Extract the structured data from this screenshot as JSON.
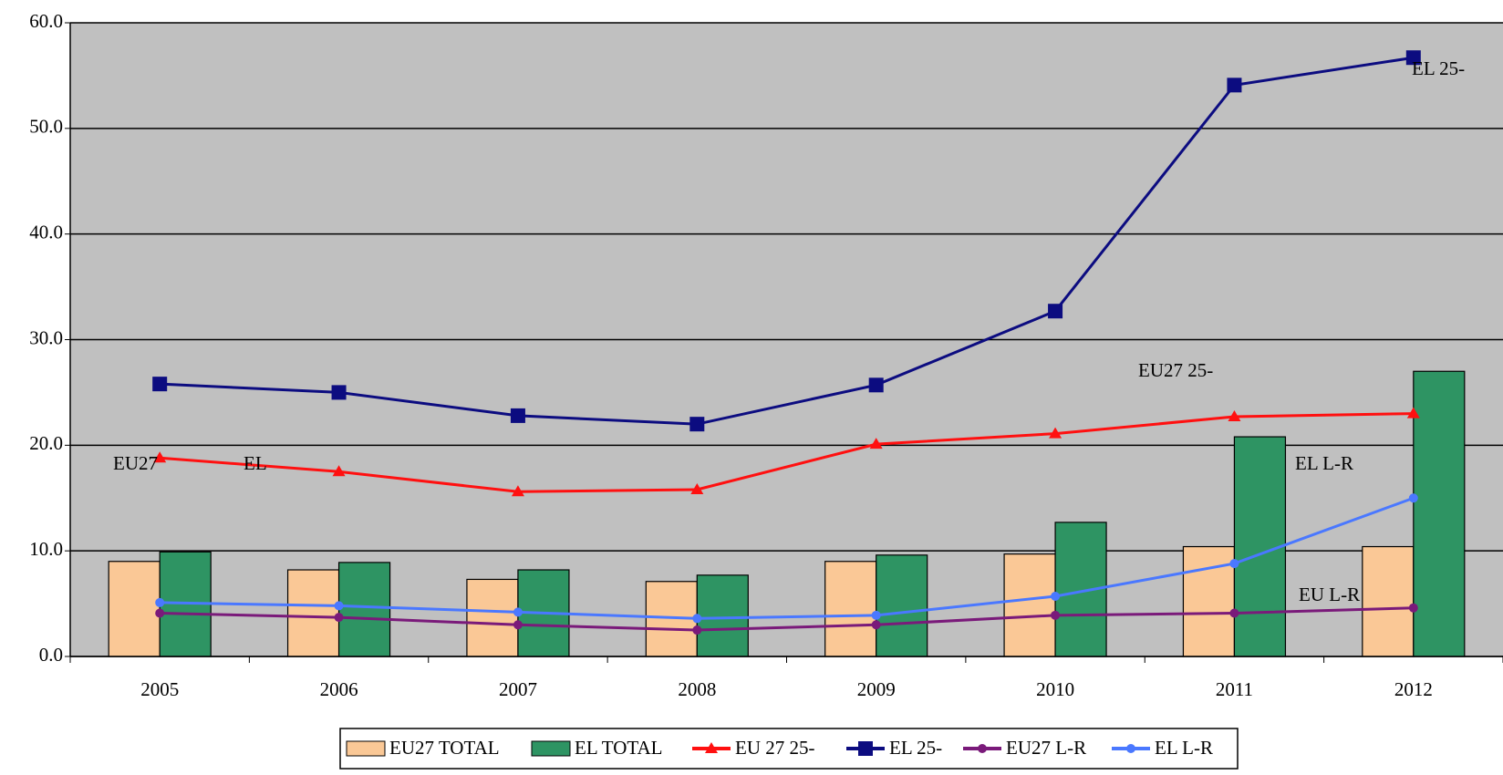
{
  "chart_data": {
    "type": "bar",
    "categories": [
      "2005",
      "2006",
      "2007",
      "2008",
      "2009",
      "2010",
      "2011",
      "2012"
    ],
    "series": [
      {
        "name": "EU27 TOTAL",
        "type": "bar",
        "color": "#fac896",
        "values": [
          9.0,
          8.2,
          7.3,
          7.1,
          9.0,
          9.7,
          10.4,
          10.4
        ]
      },
      {
        "name": "EL TOTAL",
        "type": "bar",
        "color": "#2e9463",
        "values": [
          9.9,
          8.9,
          8.2,
          7.7,
          9.6,
          12.7,
          20.8,
          27.0
        ]
      },
      {
        "name": "EU 27 25-",
        "type": "line",
        "marker": "triangle",
        "color": "#ff1010",
        "values": [
          18.8,
          17.5,
          15.6,
          15.8,
          20.1,
          21.1,
          22.7,
          23.0
        ]
      },
      {
        "name": "EL 25-",
        "type": "line",
        "marker": "square",
        "color": "#0c0c80",
        "values": [
          25.8,
          25.0,
          22.8,
          22.0,
          25.7,
          32.7,
          54.1,
          56.7
        ]
      },
      {
        "name": "EU27 L-R",
        "type": "line",
        "marker": "circle",
        "color": "#7a1a7a",
        "values": [
          4.1,
          3.7,
          3.0,
          2.5,
          3.0,
          3.9,
          4.1,
          4.6
        ]
      },
      {
        "name": "EL L-R",
        "type": "line",
        "marker": "circle",
        "color": "#4a78ff",
        "values": [
          5.1,
          4.8,
          4.2,
          3.6,
          3.9,
          5.7,
          8.8,
          15.0
        ]
      }
    ],
    "ylim": [
      0,
      60
    ],
    "yticks": [
      {
        "value": 0,
        "label": "0.0"
      },
      {
        "value": 10,
        "label": "10.0"
      },
      {
        "value": 20,
        "label": "20.0"
      },
      {
        "value": 30,
        "label": "30.0"
      },
      {
        "value": 40,
        "label": "40.0"
      },
      {
        "value": 50,
        "label": "50.0"
      },
      {
        "value": 60,
        "label": "60.0"
      }
    ],
    "grid": true,
    "plot_background": "#c0c0c0",
    "legend": "bottom",
    "annotations": [
      {
        "text": "EU27",
        "color": "#ffd000"
      },
      {
        "text": "EL",
        "color": "#2e9463"
      },
      {
        "text": "EU27 25-",
        "color": "#ff1010"
      },
      {
        "text": "EL 25-",
        "color": "#0c0c80"
      },
      {
        "text": "EL L-R",
        "color": "#4a78ff"
      },
      {
        "text": "EU L-R",
        "color": "#000000"
      }
    ]
  }
}
